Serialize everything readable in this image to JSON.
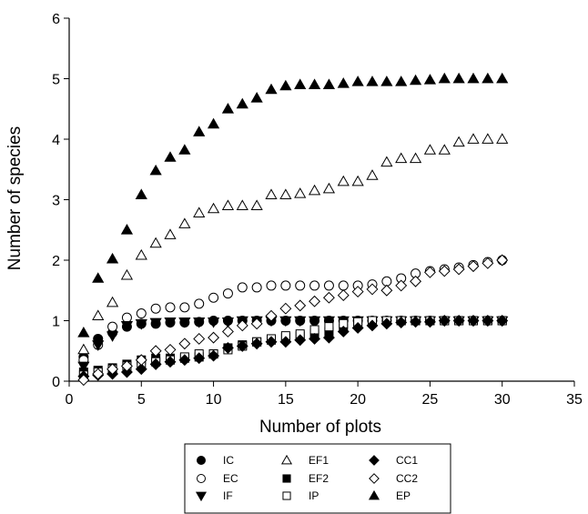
{
  "chart_data": {
    "type": "scatter",
    "xlabel": "Number of plots",
    "ylabel": "Number of species",
    "xlim": [
      0,
      35
    ],
    "ylim": [
      0,
      6
    ],
    "xticks": [
      0,
      5,
      10,
      15,
      20,
      25,
      30,
      35
    ],
    "yticks": [
      0,
      1,
      2,
      3,
      4,
      5,
      6
    ],
    "grid": false,
    "legend_position": "bottom-center",
    "series": [
      {
        "name": "IC",
        "marker": "circle-filled",
        "x": [
          1,
          2,
          3,
          4,
          5,
          6,
          7,
          8,
          9,
          10,
          11,
          12,
          13,
          14,
          15,
          16,
          17,
          18,
          19,
          20,
          21,
          22,
          23,
          24,
          25,
          26,
          27,
          28,
          29,
          30
        ],
        "y": [
          0.4,
          0.7,
          0.8,
          0.9,
          0.95,
          0.95,
          0.97,
          0.97,
          0.98,
          1,
          1,
          1,
          1,
          1,
          1,
          1,
          1,
          1,
          1,
          1,
          1,
          1,
          1,
          1,
          1,
          1,
          1,
          1,
          1,
          1
        ]
      },
      {
        "name": "EC",
        "marker": "circle-open",
        "x": [
          1,
          2,
          3,
          4,
          5,
          6,
          7,
          8,
          9,
          10,
          11,
          12,
          13,
          14,
          15,
          16,
          17,
          18,
          19,
          20,
          21,
          22,
          23,
          24,
          25,
          26,
          27,
          28,
          29,
          30
        ],
        "y": [
          0.35,
          0.6,
          0.9,
          1.05,
          1.12,
          1.2,
          1.22,
          1.22,
          1.28,
          1.38,
          1.45,
          1.55,
          1.55,
          1.58,
          1.58,
          1.58,
          1.58,
          1.58,
          1.58,
          1.58,
          1.6,
          1.65,
          1.7,
          1.78,
          1.82,
          1.85,
          1.88,
          1.92,
          1.97,
          2
        ]
      },
      {
        "name": "IF",
        "marker": "triangle-down-filled",
        "x": [
          1,
          2,
          3,
          4,
          5,
          6,
          7,
          8,
          9,
          10,
          11,
          12,
          13,
          14,
          15,
          16,
          17,
          18,
          19,
          20,
          21,
          22,
          23,
          24,
          25,
          26,
          27,
          28,
          29,
          30
        ],
        "y": [
          0.25,
          0.6,
          0.75,
          0.92,
          0.95,
          0.97,
          0.98,
          0.98,
          0.98,
          0.98,
          0.98,
          1,
          1,
          1,
          1,
          1,
          1,
          1,
          1,
          1,
          1,
          1,
          1,
          1,
          1,
          1,
          1,
          1,
          1,
          1
        ]
      },
      {
        "name": "EF1",
        "marker": "triangle-up-open",
        "x": [
          1,
          2,
          3,
          4,
          5,
          6,
          7,
          8,
          9,
          10,
          11,
          12,
          13,
          14,
          15,
          16,
          17,
          18,
          19,
          20,
          21,
          22,
          23,
          24,
          25,
          26,
          27,
          28,
          29,
          30
        ],
        "y": [
          0.52,
          1.08,
          1.3,
          1.75,
          2.08,
          2.28,
          2.42,
          2.6,
          2.78,
          2.85,
          2.9,
          2.9,
          2.9,
          3.08,
          3.08,
          3.1,
          3.15,
          3.18,
          3.3,
          3.3,
          3.4,
          3.62,
          3.68,
          3.68,
          3.82,
          3.82,
          3.95,
          4,
          4,
          4
        ]
      },
      {
        "name": "EF2",
        "marker": "square-filled",
        "x": [
          1,
          2,
          3,
          4,
          5,
          6,
          7,
          8,
          9,
          10,
          11,
          12,
          13,
          14,
          15,
          16,
          17,
          18,
          19,
          20,
          21,
          22,
          23,
          24,
          25,
          26,
          27,
          28,
          29,
          30
        ],
        "y": [
          0.15,
          0.18,
          0.22,
          0.28,
          0.35,
          0.38,
          0.38,
          0.38,
          0.4,
          0.45,
          0.55,
          0.6,
          0.65,
          0.68,
          0.72,
          0.75,
          0.78,
          0.82,
          0.88,
          0.95,
          0.98,
          1,
          1,
          1,
          1,
          1,
          1,
          1,
          1,
          1
        ]
      },
      {
        "name": "IP",
        "marker": "square-open",
        "x": [
          1,
          2,
          3,
          4,
          5,
          6,
          7,
          8,
          9,
          10,
          11,
          12,
          13,
          14,
          15,
          16,
          17,
          18,
          19,
          20,
          21,
          22,
          23,
          24,
          25,
          26,
          27,
          28,
          29,
          30
        ],
        "y": [
          0.1,
          0.15,
          0.2,
          0.25,
          0.3,
          0.32,
          0.35,
          0.4,
          0.45,
          0.45,
          0.52,
          0.58,
          0.65,
          0.7,
          0.75,
          0.78,
          0.85,
          0.9,
          0.95,
          0.98,
          1,
          1,
          1,
          1,
          1,
          1,
          1,
          1,
          1,
          1
        ]
      },
      {
        "name": "CC1",
        "marker": "diamond-filled",
        "x": [
          1,
          2,
          3,
          4,
          5,
          6,
          7,
          8,
          9,
          10,
          11,
          12,
          13,
          14,
          15,
          16,
          17,
          18,
          19,
          20,
          21,
          22,
          23,
          24,
          25,
          26,
          27,
          28,
          29,
          30
        ],
        "y": [
          0.08,
          0.1,
          0.12,
          0.15,
          0.2,
          0.28,
          0.32,
          0.35,
          0.38,
          0.42,
          0.55,
          0.58,
          0.62,
          0.65,
          0.65,
          0.68,
          0.7,
          0.72,
          0.82,
          0.88,
          0.92,
          0.95,
          0.97,
          0.98,
          0.98,
          1,
          1,
          1,
          1,
          1
        ]
      },
      {
        "name": "CC2",
        "marker": "diamond-open",
        "x": [
          1,
          2,
          3,
          4,
          5,
          6,
          7,
          8,
          9,
          10,
          11,
          12,
          13,
          14,
          15,
          16,
          17,
          18,
          19,
          20,
          21,
          22,
          23,
          24,
          25,
          26,
          27,
          28,
          29,
          30
        ],
        "y": [
          0.02,
          0.12,
          0.2,
          0.25,
          0.35,
          0.5,
          0.52,
          0.62,
          0.7,
          0.72,
          0.82,
          0.92,
          0.95,
          1.08,
          1.2,
          1.25,
          1.32,
          1.38,
          1.42,
          1.48,
          1.52,
          1.5,
          1.58,
          1.65,
          1.8,
          1.82,
          1.85,
          1.9,
          1.95,
          2
        ]
      },
      {
        "name": "EP",
        "marker": "triangle-up-filled",
        "x": [
          1,
          2,
          3,
          4,
          5,
          6,
          7,
          8,
          9,
          10,
          11,
          12,
          13,
          14,
          15,
          16,
          17,
          18,
          19,
          20,
          21,
          22,
          23,
          24,
          25,
          26,
          27,
          28,
          29,
          30
        ],
        "y": [
          0.8,
          1.7,
          2.02,
          2.5,
          3.08,
          3.48,
          3.7,
          3.82,
          4.12,
          4.25,
          4.5,
          4.58,
          4.68,
          4.82,
          4.88,
          4.9,
          4.9,
          4.9,
          4.92,
          4.95,
          4.95,
          4.95,
          4.95,
          4.97,
          4.98,
          5,
          5,
          5,
          5,
          5
        ]
      }
    ]
  }
}
